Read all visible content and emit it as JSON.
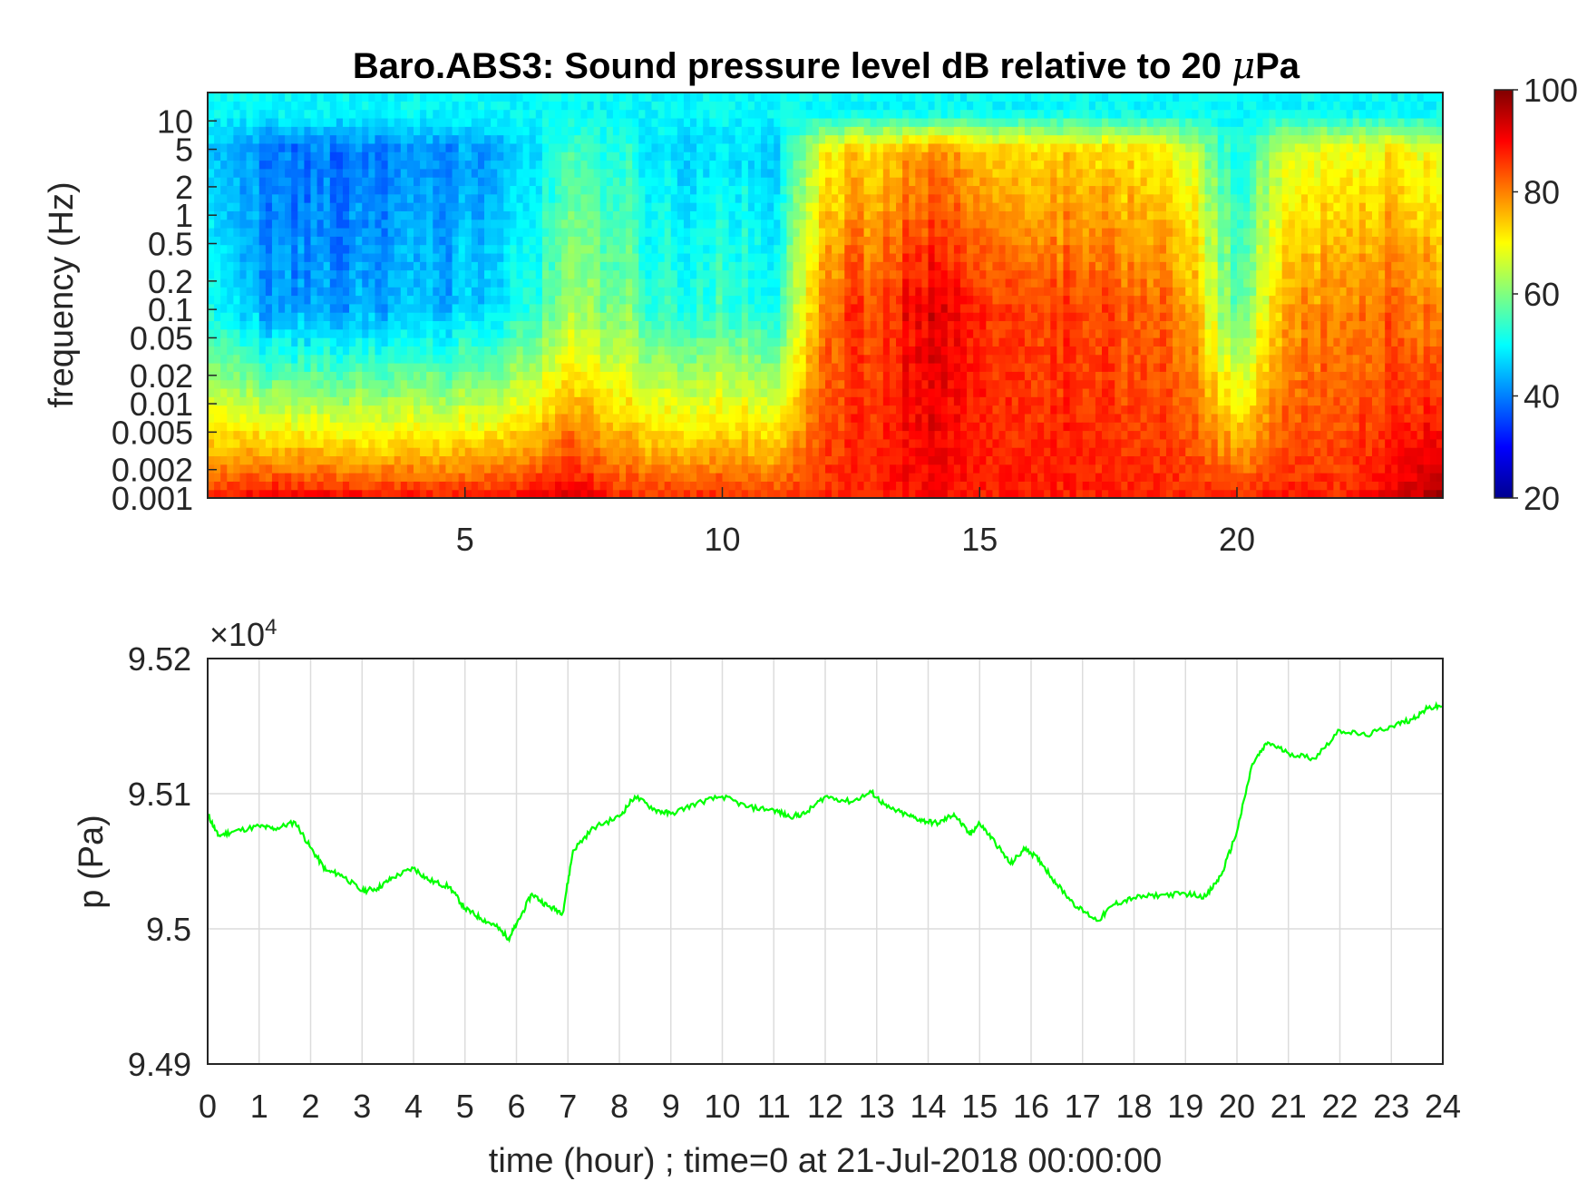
{
  "chart_data": [
    {
      "type": "heatmap",
      "title_prefix": "Baro.ABS3: Sound pressure level dB relative to 20 ",
      "title_mu": "μ",
      "title_suffix": "Pa",
      "ylabel": "frequency (Hz)",
      "xlabel": "",
      "x_ticks": [
        "5",
        "10",
        "15",
        "20"
      ],
      "x_tick_values": [
        5,
        10,
        15,
        20
      ],
      "xlim": [
        0,
        24
      ],
      "y_scale": "log",
      "y_ticks": [
        "10",
        "5",
        "2",
        "1",
        "0.5",
        "0.2",
        "0.1",
        "0.05",
        "0.02",
        "0.01",
        "0.005",
        "0.002",
        "0.001"
      ],
      "y_tick_values": [
        10,
        5,
        2,
        1,
        0.5,
        0.2,
        0.1,
        0.05,
        0.02,
        0.01,
        0.005,
        0.002,
        0.001
      ],
      "ylim": [
        0.001,
        20
      ],
      "colorbar": {
        "range": [
          20,
          100
        ],
        "ticks": [
          "20",
          "40",
          "60",
          "80",
          "100"
        ],
        "tick_values": [
          20,
          40,
          60,
          80,
          100
        ],
        "colormap": "jet"
      },
      "level_profile": {
        "hours": [
          0,
          1,
          2,
          3,
          4,
          5,
          6,
          7,
          8,
          9,
          10,
          11,
          12,
          13,
          14,
          15,
          16,
          17,
          18,
          19,
          20,
          21,
          22,
          23,
          24
        ],
        "level_db_at_0.1Hz": [
          52,
          44,
          42,
          43,
          44,
          46,
          50,
          62,
          60,
          52,
          56,
          50,
          82,
          86,
          92,
          86,
          84,
          86,
          82,
          80,
          56,
          78,
          82,
          82,
          80
        ],
        "level_db_at_0.001Hz": [
          88,
          92,
          92,
          90,
          90,
          89,
          90,
          94,
          88,
          87,
          88,
          87,
          87,
          88,
          90,
          88,
          88,
          88,
          87,
          88,
          88,
          88,
          87,
          92,
          98
        ]
      }
    },
    {
      "type": "line",
      "xlabel": "time (hour) ; time=0 at 21-Jul-2018 00:00:00",
      "ylabel": "p (Pa)",
      "y_multiplier_prefix": "×10",
      "y_multiplier_exponent": "4",
      "xlim": [
        0,
        24
      ],
      "ylim": [
        94900,
        95200
      ],
      "x_ticks": [
        "0",
        "1",
        "2",
        "3",
        "4",
        "5",
        "6",
        "7",
        "8",
        "9",
        "10",
        "11",
        "12",
        "13",
        "14",
        "15",
        "16",
        "17",
        "18",
        "19",
        "20",
        "21",
        "22",
        "23",
        "24"
      ],
      "y_ticks": [
        "9.49",
        "9.5",
        "9.51",
        "9.52"
      ],
      "y_tick_values": [
        94900,
        95000,
        95100,
        95200
      ],
      "grid": true,
      "color": "#00ff00",
      "x": [
        0,
        0.2,
        0.5,
        1,
        1.3,
        1.7,
        2,
        2.3,
        2.6,
        3,
        3.3,
        3.6,
        4,
        4.3,
        4.7,
        5,
        5.3,
        5.6,
        5.85,
        6,
        6.3,
        6.6,
        6.9,
        7.1,
        7.5,
        8,
        8.3,
        8.7,
        9,
        9.5,
        10,
        10.5,
        11,
        11.3,
        11.6,
        12,
        12.5,
        12.9,
        13.2,
        13.6,
        13.9,
        14.2,
        14.5,
        14.8,
        15,
        15.3,
        15.6,
        15.9,
        16.2,
        16.5,
        16.9,
        17.3,
        17.6,
        18,
        18.5,
        19,
        19.4,
        19.7,
        20,
        20.3,
        20.6,
        21,
        21.5,
        22,
        22.5,
        23,
        23.4,
        23.7,
        24
      ],
      "y": [
        95085,
        95069,
        95072,
        95076,
        95074,
        95079,
        95060,
        95043,
        95040,
        95028,
        95030,
        95038,
        95045,
        95036,
        95031,
        95015,
        95008,
        95002,
        94993,
        95003,
        95026,
        95017,
        95012,
        95058,
        95075,
        95083,
        95098,
        95088,
        95085,
        95093,
        95098,
        95090,
        95088,
        95083,
        95085,
        95098,
        95094,
        95101,
        95090,
        95084,
        95080,
        95078,
        95085,
        95070,
        95078,
        95064,
        95048,
        95060,
        95049,
        95033,
        95016,
        95006,
        95018,
        95023,
        95025,
        95026,
        95024,
        95040,
        95072,
        95122,
        95138,
        95130,
        95126,
        95147,
        95143,
        95150,
        95155,
        95163,
        95165
      ]
    }
  ]
}
